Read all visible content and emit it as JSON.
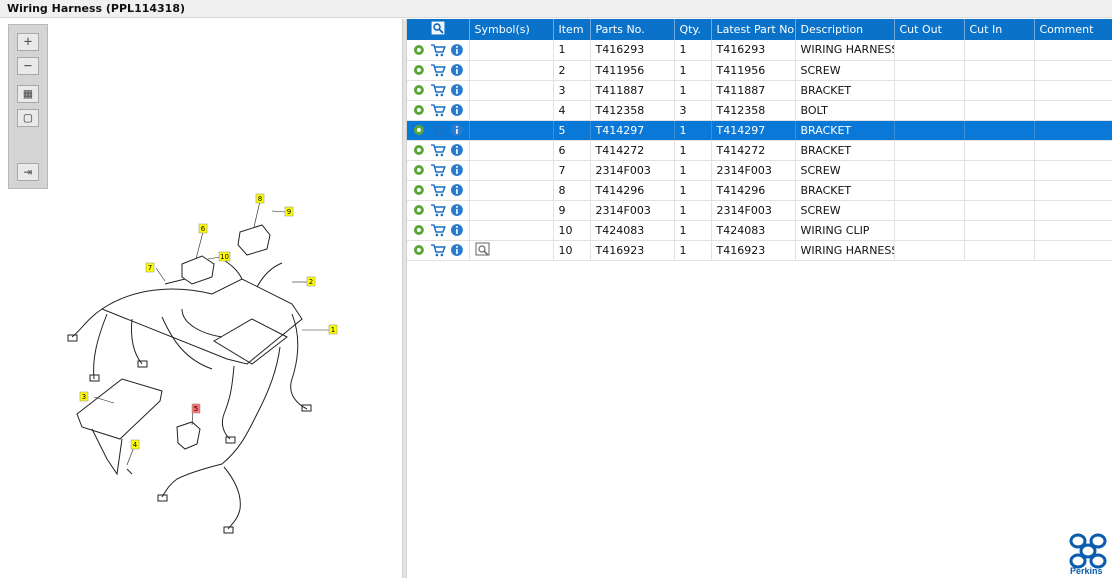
{
  "window": {
    "title": "Wiring Harness (PPL114318)"
  },
  "toolbar": {
    "buttons": [
      "zoom-in",
      "zoom-out",
      "fit-all",
      "fit-window",
      "toggle-panel"
    ]
  },
  "diagram": {
    "callouts": [
      "1",
      "2",
      "3",
      "4",
      "5",
      "6",
      "7",
      "8",
      "9",
      "10"
    ],
    "highlight_callout": "5"
  },
  "table": {
    "headers": {
      "symbols": "Symbol(s)",
      "item": "Item",
      "parts_no": "Parts No.",
      "qty": "Qty.",
      "latest_part_no": "Latest Part No.",
      "description": "Description",
      "cut_out": "Cut Out",
      "cut_in": "Cut In",
      "comment": "Comment"
    },
    "selected_index": 4,
    "rows": [
      {
        "item": "1",
        "parts_no": "T416293",
        "qty": "1",
        "latest": "T416293",
        "desc": "WIRING HARNESS"
      },
      {
        "item": "2",
        "parts_no": "T411956",
        "qty": "1",
        "latest": "T411956",
        "desc": "SCREW"
      },
      {
        "item": "3",
        "parts_no": "T411887",
        "qty": "1",
        "latest": "T411887",
        "desc": "BRACKET"
      },
      {
        "item": "4",
        "parts_no": "T412358",
        "qty": "3",
        "latest": "T412358",
        "desc": "BOLT"
      },
      {
        "item": "5",
        "parts_no": "T414297",
        "qty": "1",
        "latest": "T414297",
        "desc": "BRACKET"
      },
      {
        "item": "6",
        "parts_no": "T414272",
        "qty": "1",
        "latest": "T414272",
        "desc": "BRACKET"
      },
      {
        "item": "7",
        "parts_no": "2314F003",
        "qty": "1",
        "latest": "2314F003",
        "desc": "SCREW"
      },
      {
        "item": "8",
        "parts_no": "T414296",
        "qty": "1",
        "latest": "T414296",
        "desc": "BRACKET"
      },
      {
        "item": "9",
        "parts_no": "2314F003",
        "qty": "1",
        "latest": "2314F003",
        "desc": "SCREW"
      },
      {
        "item": "10",
        "parts_no": "T424083",
        "qty": "1",
        "latest": "T424083",
        "desc": "WIRING CLIP"
      },
      {
        "item": "10",
        "parts_no": "T416923",
        "qty": "1",
        "latest": "T416923",
        "desc": "WIRING HARNESS",
        "has_symbol": true
      }
    ]
  },
  "brand": {
    "name": "Perkins",
    "color": "#0b5cad"
  },
  "colors": {
    "header": "#0b72c9",
    "selected_row": "#0a78d7",
    "callout_yellow": "#ffff00",
    "callout_red": "#ff7070"
  }
}
